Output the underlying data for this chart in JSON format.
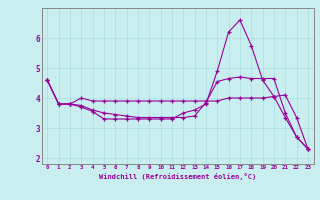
{
  "xlabel": "Windchill (Refroidissement éolien,°C)",
  "bg_color": "#c8eef0",
  "line_color": "#990099",
  "grid_color": "#aadddd",
  "spine_color": "#888888",
  "hours": [
    0,
    1,
    2,
    3,
    4,
    5,
    6,
    7,
    8,
    9,
    10,
    11,
    12,
    13,
    14,
    15,
    16,
    17,
    18,
    19,
    20,
    21,
    22,
    23
  ],
  "line1": [
    4.6,
    3.8,
    3.8,
    3.7,
    3.55,
    3.3,
    3.3,
    3.3,
    3.3,
    3.3,
    3.3,
    3.3,
    3.5,
    3.6,
    3.8,
    4.9,
    6.2,
    6.6,
    5.75,
    4.6,
    4.05,
    3.35,
    2.7,
    2.3
  ],
  "line2": [
    4.6,
    3.8,
    3.8,
    3.75,
    3.6,
    3.5,
    3.45,
    3.4,
    3.35,
    3.35,
    3.35,
    3.35,
    3.35,
    3.4,
    3.85,
    4.55,
    4.65,
    4.7,
    4.65,
    4.65,
    4.65,
    3.5,
    2.7,
    2.3
  ],
  "line3": [
    4.6,
    3.8,
    3.8,
    4.0,
    3.9,
    3.9,
    3.9,
    3.9,
    3.9,
    3.9,
    3.9,
    3.9,
    3.9,
    3.9,
    3.9,
    3.9,
    4.0,
    4.0,
    4.0,
    4.0,
    4.05,
    4.1,
    3.35,
    2.3
  ],
  "ylim": [
    1.8,
    7.0
  ],
  "yticks": [
    2,
    3,
    4,
    5,
    6
  ],
  "xlim": [
    -0.5,
    23.5
  ]
}
